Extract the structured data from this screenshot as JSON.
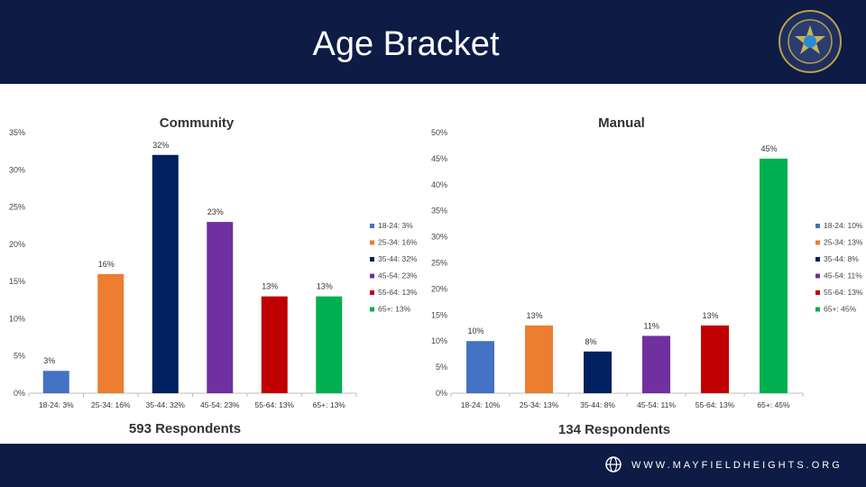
{
  "header": {
    "title": "Age Bracket"
  },
  "footer": {
    "url": "WWW.MAYFIELDHEIGHTS.ORG"
  },
  "chart_data": [
    {
      "type": "bar",
      "title": "Community",
      "categories": [
        "18-24: 3%",
        "25-34: 16%",
        "35-44: 32%",
        "45-54: 23%",
        "55-64: 13%",
        "65+: 13%"
      ],
      "values": [
        3,
        16,
        32,
        23,
        13,
        13
      ],
      "data_labels": [
        "3%",
        "16%",
        "32%",
        "23%",
        "13%",
        "13%"
      ],
      "colors": [
        "#4472c4",
        "#ed7d31",
        "#002060",
        "#7030a0",
        "#c00000",
        "#00b050"
      ],
      "legend": [
        "18-24: 3%",
        "25-34: 16%",
        "35-44: 32%",
        "45-54: 23%",
        "55-64: 13%",
        "65+: 13%"
      ],
      "legend_position": "right",
      "ylim": [
        0,
        35
      ],
      "yticks": [
        0,
        5,
        10,
        15,
        20,
        25,
        30,
        35
      ],
      "ytick_labels": [
        "0%",
        "5%",
        "10%",
        "15%",
        "20%",
        "25%",
        "30%",
        "35%"
      ],
      "grid": false,
      "footnote": "593 Respondents"
    },
    {
      "type": "bar",
      "title": "Manual",
      "categories": [
        "18-24: 10%",
        "25-34: 13%",
        "35-44: 8%",
        "45-54: 11%",
        "55-64: 13%",
        "65+: 45%"
      ],
      "values": [
        10,
        13,
        8,
        11,
        13,
        45
      ],
      "data_labels": [
        "10%",
        "13%",
        "8%",
        "11%",
        "13%",
        "45%"
      ],
      "colors": [
        "#4472c4",
        "#ed7d31",
        "#002060",
        "#7030a0",
        "#c00000",
        "#00b050"
      ],
      "legend": [
        "18-24: 10%",
        "25-34: 13%",
        "35-44: 8%",
        "45-54: 11%",
        "55-64: 13%",
        "65+: 45%"
      ],
      "legend_position": "right",
      "ylim": [
        0,
        50
      ],
      "yticks": [
        0,
        5,
        10,
        15,
        20,
        25,
        30,
        35,
        40,
        45,
        50
      ],
      "ytick_labels": [
        "0%",
        "5%",
        "10%",
        "15%",
        "20%",
        "25%",
        "30%",
        "35%",
        "40%",
        "45%",
        "50%"
      ],
      "grid": false,
      "footnote": "134 Respondents"
    }
  ]
}
